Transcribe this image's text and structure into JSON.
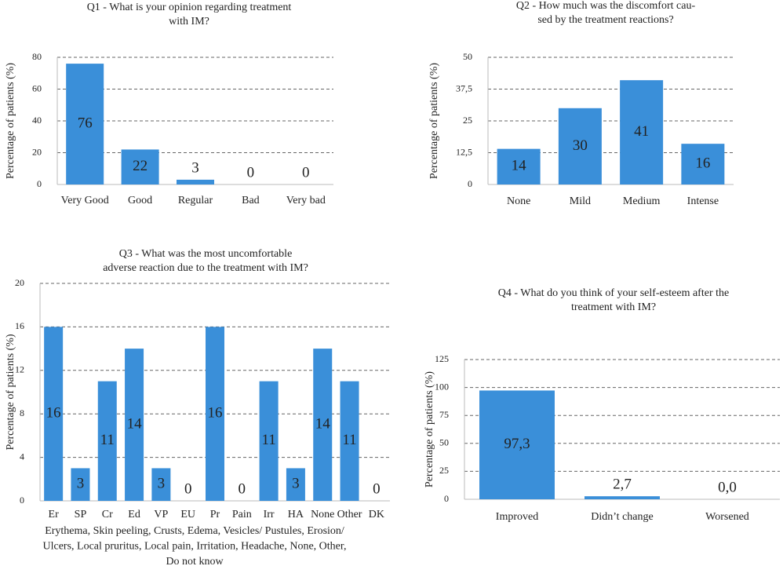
{
  "chart_data": [
    {
      "type": "bar",
      "title": [
        "Q1 - What is your opinion regarding treatment",
        "with IM?"
      ],
      "y_label": "Percentage of patients (%)",
      "categories": [
        "Very Good",
        "Good",
        "Regular",
        "Bad",
        "Very bad"
      ],
      "values": [
        76,
        22,
        3,
        0,
        0
      ],
      "color": "#3a8fd9",
      "ylim": [
        0,
        80
      ],
      "yticks": [
        0,
        20,
        40,
        60,
        80
      ],
      "grid": true
    },
    {
      "type": "bar",
      "title": [
        "Q2 - How much was the discomfort cau-",
        "sed by the treatment reactions?"
      ],
      "y_label": "Percentage of patients (%)",
      "categories": [
        "None",
        "Mild",
        "Medium",
        "Intense"
      ],
      "values": [
        14,
        30,
        41,
        16
      ],
      "color": "#3a8fd9",
      "ylim": [
        0,
        50
      ],
      "yticks": [
        0,
        {
          "value": 12.5,
          "label": "12,5"
        },
        25,
        {
          "value": 37.5,
          "label": "37,5"
        },
        50
      ],
      "grid": true
    },
    {
      "type": "bar",
      "title": [
        "Q3 - What was the most uncomfortable",
        "adverse reaction due to the treatment with IM?"
      ],
      "y_label": "Percentage of patients (%)",
      "categories": [
        "Er",
        "SP",
        "Cr",
        "Ed",
        "VP",
        "EU",
        "Pr",
        "Pain",
        "Irr",
        "HA",
        "None",
        "Other",
        "DK"
      ],
      "values": [
        16,
        3,
        11,
        14,
        3,
        0,
        16,
        0,
        11,
        3,
        14,
        11,
        0
      ],
      "color": "#3a8fd9",
      "ylim": [
        0,
        20
      ],
      "yticks": [
        0,
        4,
        8,
        12,
        16,
        20
      ],
      "grid": true,
      "note": [
        "Erythema, Skin peeling, Crusts, Edema, Vesicles/ Pustules, Erosion/",
        "Ulcers, Local pruritus, Local pain, Irritation, Headache, None, Other,",
        "Do not know"
      ]
    },
    {
      "type": "bar",
      "title": [
        "Q4 - What do you think of your self-esteem after the",
        "treatment with IM?"
      ],
      "y_label": "Percentage of patients (%)",
      "categories": [
        "Improved",
        "Didn’t change",
        "Worsened"
      ],
      "values": [
        97.3,
        2.7,
        0
      ],
      "value_labels": [
        "97,3",
        "2,7",
        "0,0"
      ],
      "color": "#3a8fd9",
      "ylim": [
        0,
        125
      ],
      "yticks": [
        0,
        25,
        50,
        75,
        100,
        125
      ],
      "grid": true
    }
  ]
}
